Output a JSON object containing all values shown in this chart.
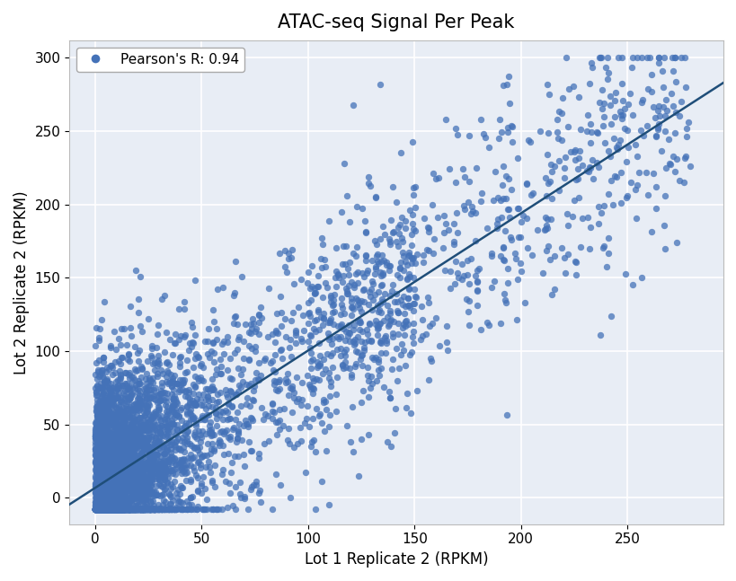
{
  "title": "ATAC-seq Signal Per Peak",
  "xlabel": "Lot 1 Replicate 2 (RPKM)",
  "ylabel": "Lot 2 Replicate 2 (RPKM)",
  "xlim": [
    -12,
    295
  ],
  "ylim": [
    -18,
    312
  ],
  "xticks": [
    0,
    50,
    100,
    150,
    200,
    250
  ],
  "yticks": [
    0,
    50,
    100,
    150,
    200,
    250,
    300
  ],
  "dot_color": "#4472b8",
  "line_color": "#1f4e79",
  "background_color": "#e8edf5",
  "grid_color": "#ffffff",
  "fig_background": "#ffffff",
  "pearson_r": 0.94,
  "legend_label": "Pearson's R: 0.94",
  "n_points": 5000,
  "seed": 7,
  "slope": 0.985,
  "intercept": -1.5,
  "title_fontsize": 15,
  "label_fontsize": 12,
  "tick_fontsize": 11,
  "legend_fontsize": 11,
  "dot_size": 28,
  "dot_alpha": 0.75,
  "line_width": 1.8
}
